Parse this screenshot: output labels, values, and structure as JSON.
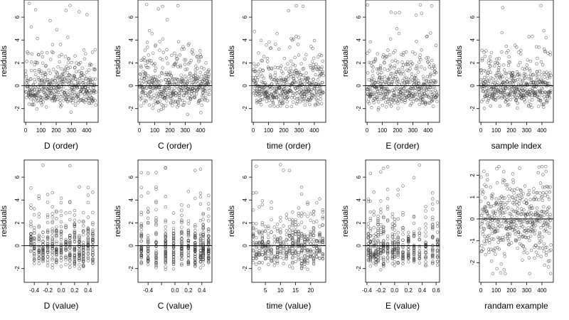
{
  "figure": {
    "title": ""
  },
  "chart_data": [
    {
      "type": "scatter",
      "xlabel": "D (order)",
      "ylabel": "residuals",
      "xlim": [
        -10,
        475
      ],
      "ylim": [
        -3.2,
        7.5
      ],
      "xticks": [
        "0",
        "100",
        "200",
        "300",
        "400"
      ],
      "xtick_values": [
        0,
        100,
        200,
        300,
        400
      ],
      "yticks": [
        "-2",
        "0",
        "2",
        "4",
        "6"
      ],
      "ytick_values": [
        -2,
        0,
        2,
        4,
        6
      ],
      "reference_line": 0,
      "x_mode": "index",
      "n_points": 460,
      "seed": 11,
      "grid": false
    },
    {
      "type": "scatter",
      "xlabel": "C (order)",
      "ylabel": "residuals",
      "xlim": [
        -10,
        475
      ],
      "ylim": [
        -3.2,
        7.5
      ],
      "xticks": [
        "0",
        "100",
        "200",
        "300",
        "400"
      ],
      "xtick_values": [
        0,
        100,
        200,
        300,
        400
      ],
      "yticks": [
        "-2",
        "0",
        "2",
        "4",
        "6"
      ],
      "ytick_values": [
        -2,
        0,
        2,
        4,
        6
      ],
      "reference_line": 0,
      "x_mode": "index",
      "n_points": 460,
      "seed": 23,
      "grid": false
    },
    {
      "type": "scatter",
      "xlabel": "time (order)",
      "ylabel": "residuals",
      "xlim": [
        -10,
        475
      ],
      "ylim": [
        -3.2,
        7.5
      ],
      "xticks": [
        "0",
        "100",
        "200",
        "300",
        "400"
      ],
      "xtick_values": [
        0,
        100,
        200,
        300,
        400
      ],
      "yticks": [
        "-2",
        "0",
        "2",
        "4",
        "6"
      ],
      "ytick_values": [
        -2,
        0,
        2,
        4,
        6
      ],
      "reference_line": 0,
      "x_mode": "index",
      "n_points": 460,
      "seed": 37,
      "grid": false
    },
    {
      "type": "scatter",
      "xlabel": "E (order)",
      "ylabel": "residuals",
      "xlim": [
        -10,
        475
      ],
      "ylim": [
        -3.2,
        7.5
      ],
      "xticks": [
        "0",
        "100",
        "200",
        "300",
        "400"
      ],
      "xtick_values": [
        0,
        100,
        200,
        300,
        400
      ],
      "yticks": [
        "-2",
        "0",
        "2",
        "4",
        "6"
      ],
      "ytick_values": [
        -2,
        0,
        2,
        4,
        6
      ],
      "reference_line": 0,
      "x_mode": "index",
      "n_points": 460,
      "seed": 41,
      "grid": false
    },
    {
      "type": "scatter",
      "xlabel": "sample index",
      "ylabel": "residuals",
      "xlim": [
        -10,
        475
      ],
      "ylim": [
        -3.2,
        7.5
      ],
      "xticks": [
        "0",
        "100",
        "200",
        "300",
        "400"
      ],
      "xtick_values": [
        0,
        100,
        200,
        300,
        400
      ],
      "yticks": [
        "-2",
        "0",
        "2",
        "4",
        "6"
      ],
      "ytick_values": [
        -2,
        0,
        2,
        4,
        6
      ],
      "reference_line": 0,
      "x_mode": "index",
      "n_points": 460,
      "seed": 53,
      "grid": false
    },
    {
      "type": "scatter",
      "xlabel": "D (value)",
      "ylabel": "residuals",
      "xlim": [
        -0.55,
        0.55
      ],
      "ylim": [
        -3.2,
        7.5
      ],
      "xticks": [
        "-0.4",
        "-0.2",
        "0.0",
        "0.2",
        "0.4"
      ],
      "xtick_values": [
        -0.4,
        -0.2,
        0,
        0.2,
        0.4
      ],
      "yticks": [
        "-2",
        "0",
        "2",
        "4",
        "6"
      ],
      "ytick_values": [
        -2,
        0,
        2,
        4,
        6
      ],
      "reference_line": 0,
      "x_mode": "discrete",
      "x_levels": [
        -0.45,
        -0.4,
        -0.33,
        -0.27,
        -0.2,
        -0.13,
        -0.07,
        0,
        0.07,
        0.13,
        0.2,
        0.27,
        0.33,
        0.4,
        0.47
      ],
      "n_points": 460,
      "seed": 61,
      "grid": false
    },
    {
      "type": "scatter",
      "xlabel": "C (value)",
      "ylabel": "residuals",
      "xlim": [
        -0.55,
        0.55
      ],
      "ylim": [
        -3.2,
        7.5
      ],
      "xticks": [
        "-0.4",
        "",
        "0.0",
        "0.2",
        "0.4"
      ],
      "xtick_values": [
        -0.4,
        -0.2,
        0,
        0.2,
        0.4
      ],
      "yticks": [
        "-2",
        "0",
        "2",
        "4",
        "6"
      ],
      "ytick_values": [
        -2,
        0,
        2,
        4,
        6
      ],
      "reference_line": 0,
      "x_mode": "discrete",
      "x_levels": [
        -0.5,
        -0.4,
        -0.28,
        -0.14,
        -0.02,
        0.1,
        0.2,
        0.3,
        0.38,
        0.42,
        0.5
      ],
      "n_points": 460,
      "seed": 71,
      "grid": false
    },
    {
      "type": "scatter",
      "xlabel": "time (value)",
      "ylabel": "residuals",
      "xlim": [
        0.5,
        25
      ],
      "ylim": [
        -3.2,
        7.5
      ],
      "xticks": [
        "5",
        "10",
        "15",
        "20"
      ],
      "xtick_values": [
        5,
        10,
        15,
        20
      ],
      "yticks": [
        "-2",
        "0",
        "2",
        "4",
        "6"
      ],
      "ytick_values": [
        -2,
        0,
        2,
        4,
        6
      ],
      "reference_line": 0,
      "x_mode": "discrete",
      "x_levels": [
        1,
        2,
        3,
        4,
        5,
        6,
        7,
        8,
        9,
        10,
        11,
        12,
        13,
        14,
        15,
        16,
        17,
        18,
        19,
        20,
        21,
        22,
        23,
        24
      ],
      "n_points": 460,
      "seed": 83,
      "grid": false
    },
    {
      "type": "scatter",
      "xlabel": "E (value)",
      "ylabel": "residuals",
      "xlim": [
        -0.42,
        0.65
      ],
      "ylim": [
        -3.2,
        7.5
      ],
      "xticks": [
        "-0.4",
        "-0.2",
        "0.0",
        "0.2",
        "0.4",
        "0.6"
      ],
      "xtick_values": [
        -0.4,
        -0.2,
        0,
        0.2,
        0.4,
        0.6
      ],
      "yticks": [
        "-2",
        "0",
        "2",
        "4",
        "6"
      ],
      "ytick_values": [
        -2,
        0,
        2,
        4,
        6
      ],
      "reference_line": 0,
      "x_mode": "discrete",
      "x_levels": [
        -0.38,
        -0.35,
        -0.3,
        -0.27,
        -0.24,
        -0.2,
        -0.16,
        -0.1,
        -0.03,
        0.0,
        0.05,
        0.12,
        0.2,
        0.28,
        0.36,
        0.45,
        0.55,
        0.62
      ],
      "n_points": 460,
      "seed": 97,
      "grid": false
    },
    {
      "type": "scatter",
      "xlabel": "randam example",
      "ylabel": "residuals",
      "xlim": [
        -10,
        475
      ],
      "ylim": [
        -2.9,
        2.7
      ],
      "xticks": [
        "0",
        "100",
        "200",
        "300",
        "400"
      ],
      "xtick_values": [
        0,
        100,
        200,
        300,
        400
      ],
      "yticks": [
        "-2",
        "-1",
        "0",
        "1",
        "2"
      ],
      "ytick_values": [
        -2,
        -1,
        0,
        1,
        2
      ],
      "reference_line": 0,
      "x_mode": "index",
      "n_points": 460,
      "seed": 109,
      "distribution": "normal",
      "grid": false
    }
  ]
}
